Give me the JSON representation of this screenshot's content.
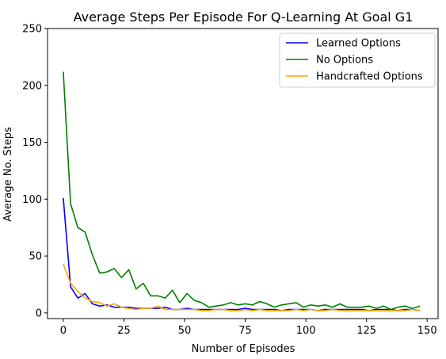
{
  "chart_data": {
    "type": "line",
    "title": "Average Steps Per Episode For Q-Learning At Goal G1",
    "xlabel": "Number of Episodes",
    "ylabel": "Average No. Steps",
    "xlim": [
      -6.5,
      154.5
    ],
    "ylim": [
      -5,
      250
    ],
    "xticks": [
      0,
      25,
      50,
      75,
      100,
      125,
      150
    ],
    "yticks": [
      0,
      50,
      100,
      150,
      200,
      250
    ],
    "grid": false,
    "legend_position": "upper-right",
    "x": [
      0,
      3,
      6,
      9,
      12,
      15,
      18,
      21,
      24,
      27,
      30,
      33,
      36,
      39,
      42,
      45,
      48,
      51,
      54,
      57,
      60,
      63,
      66,
      69,
      72,
      75,
      78,
      81,
      84,
      87,
      90,
      93,
      96,
      99,
      102,
      105,
      108,
      111,
      114,
      117,
      120,
      123,
      126,
      129,
      132,
      135,
      138,
      141,
      144,
      147
    ],
    "series": [
      {
        "name": "Learned Options",
        "color": "#0000ff",
        "values": [
          101,
          23,
          13,
          17,
          8,
          6,
          7,
          5,
          5,
          5,
          4,
          4,
          4,
          4,
          5,
          3,
          3,
          4,
          3,
          3,
          3,
          3,
          3,
          3,
          3,
          4,
          3,
          3,
          3,
          3,
          2,
          3,
          3,
          3,
          3,
          2,
          3,
          3,
          3,
          3,
          3,
          3,
          2,
          3,
          3,
          3,
          2,
          3,
          3,
          2
        ]
      },
      {
        "name": "No Options",
        "color": "#008000",
        "values": [
          212,
          96,
          75,
          71,
          51,
          35,
          36,
          39,
          31,
          38,
          21,
          26,
          15,
          15,
          13,
          20,
          9,
          17,
          11,
          9,
          5,
          6,
          7,
          9,
          7,
          8,
          7,
          10,
          8,
          5,
          7,
          8,
          9,
          5,
          7,
          6,
          7,
          5,
          8,
          5,
          5,
          5,
          6,
          4,
          6,
          3,
          5,
          6,
          4,
          6
        ]
      },
      {
        "name": "Handcrafted Options",
        "color": "#ffa500",
        "values": [
          43,
          26,
          19,
          13,
          10,
          9,
          6,
          8,
          5,
          4,
          3,
          4,
          4,
          6,
          3,
          3,
          3,
          3,
          3,
          2,
          2,
          3,
          3,
          2,
          2,
          3,
          2,
          3,
          2,
          2,
          2,
          2,
          3,
          2,
          3,
          2,
          2,
          3,
          2,
          2,
          2,
          2,
          2,
          2,
          2,
          2,
          2,
          2,
          3,
          2
        ]
      }
    ]
  }
}
